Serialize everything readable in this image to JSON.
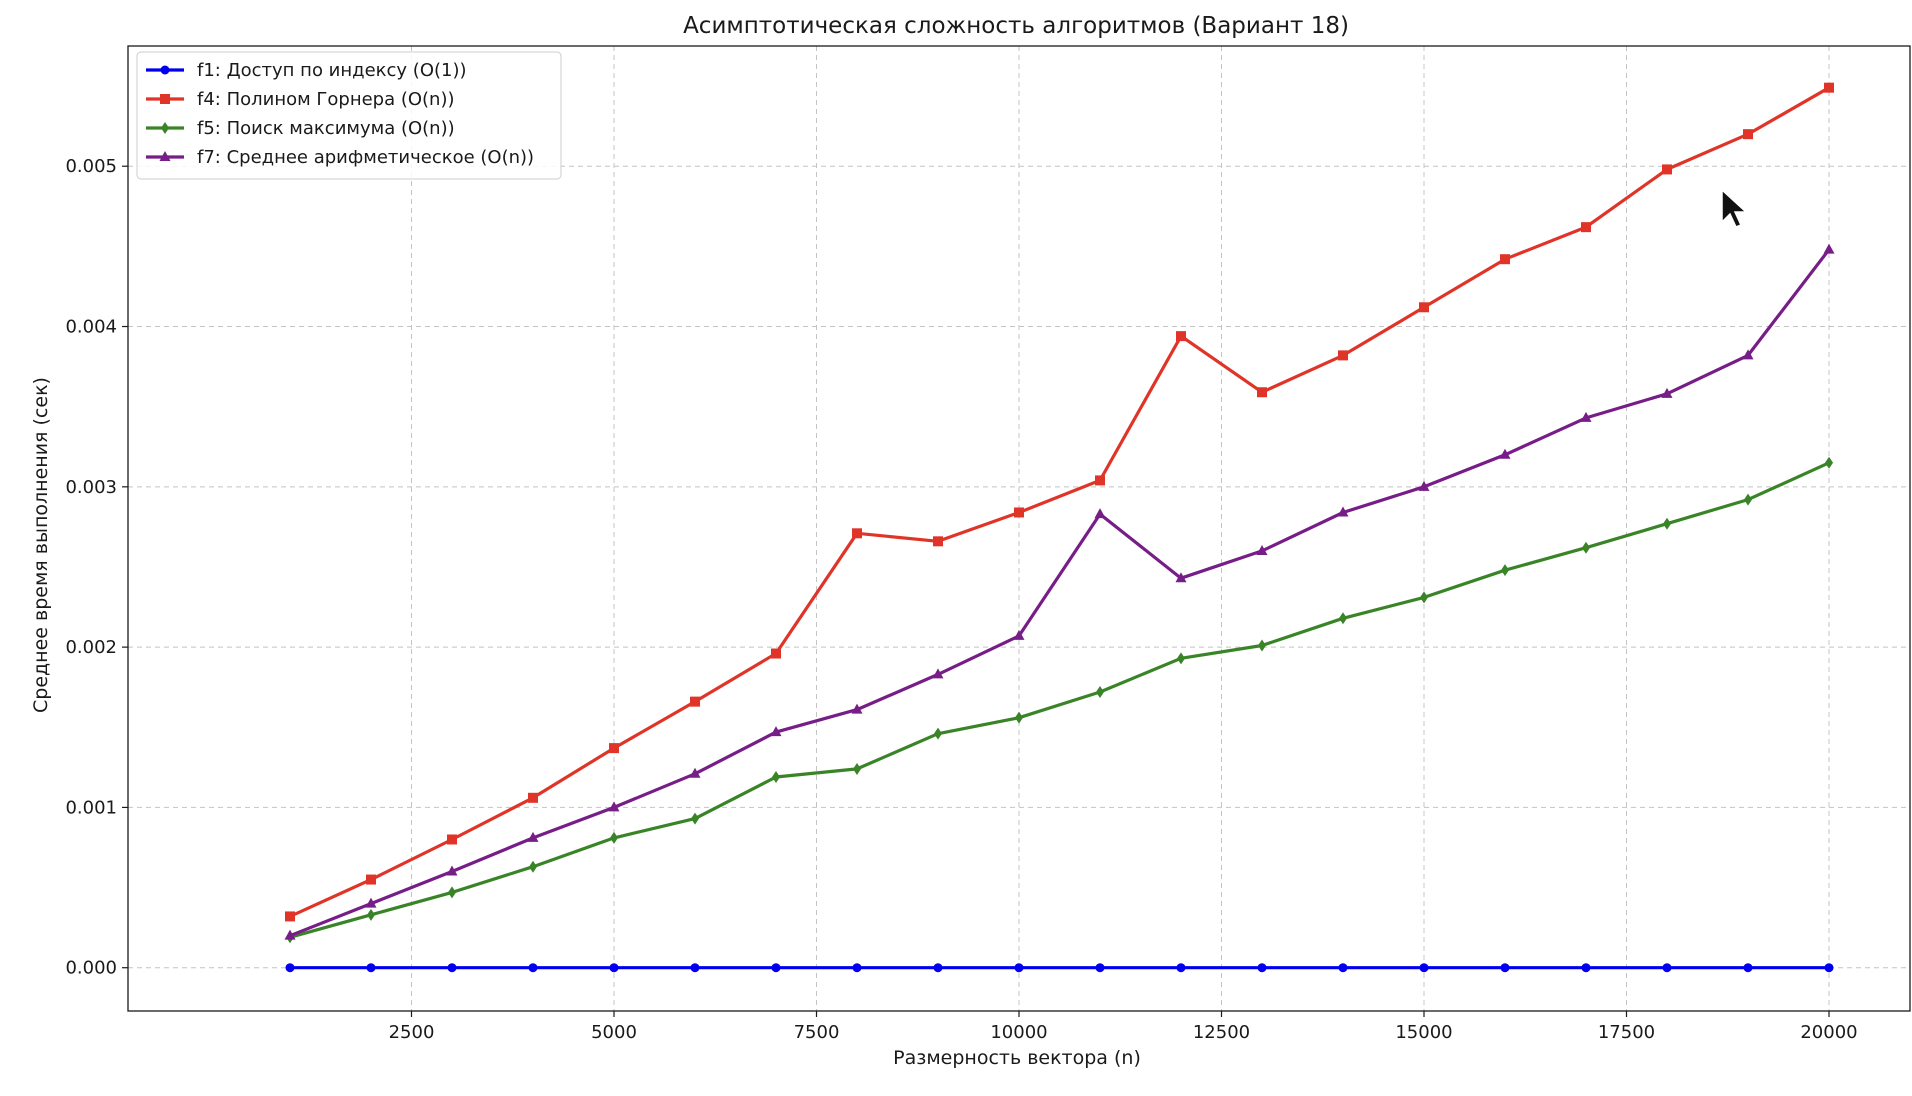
{
  "chart_data": {
    "type": "line",
    "title": "Асимптотическая сложность алгоритмов (Вариант 18)",
    "xlabel": "Размерность вектора (n)",
    "ylabel": "Среднее время выполнения (сек)",
    "xlim": [
      -1000,
      21000
    ],
    "ylim": [
      -0.00027,
      0.00575
    ],
    "x_ticks": [
      2500,
      5000,
      7500,
      10000,
      12500,
      15000,
      17500,
      20000
    ],
    "x_tick_labels": [
      "2500",
      "5000",
      "7500",
      "10000",
      "12500",
      "15000",
      "17500",
      "20000"
    ],
    "y_ticks": [
      0.0,
      0.001,
      0.002,
      0.003,
      0.004,
      0.005
    ],
    "y_tick_labels": [
      "0.000",
      "0.001",
      "0.002",
      "0.003",
      "0.004",
      "0.005"
    ],
    "grid": true,
    "legend_position": "top-left",
    "x": [
      1000,
      2000,
      3000,
      4000,
      5000,
      6000,
      7000,
      8000,
      9000,
      10000,
      11000,
      12000,
      13000,
      14000,
      15000,
      16000,
      17000,
      18000,
      19000,
      20000
    ],
    "series": [
      {
        "name": "f1: Доступ по индексу (O(1))",
        "color": "#0000ee",
        "marker": "circle",
        "values": [
          0,
          0,
          0,
          0,
          0,
          0,
          0,
          0,
          0,
          0,
          0,
          0,
          0,
          0,
          0,
          0,
          0,
          0,
          0,
          0
        ]
      },
      {
        "name": "f4: Полином Горнера (O(n))",
        "color": "#e03428",
        "marker": "square",
        "values": [
          0.00032,
          0.00055,
          0.0008,
          0.00106,
          0.00137,
          0.00166,
          0.00196,
          0.00271,
          0.00266,
          0.00284,
          0.00304,
          0.00394,
          0.00359,
          0.00382,
          0.00412,
          0.00442,
          0.00462,
          0.00498,
          0.0052,
          0.00549
        ]
      },
      {
        "name": "f5: Поиск максимума (O(n))",
        "color": "#3a8428",
        "marker": "diamond",
        "values": [
          0.00019,
          0.00033,
          0.00047,
          0.00063,
          0.00081,
          0.00093,
          0.00119,
          0.00124,
          0.00146,
          0.00156,
          0.00172,
          0.00193,
          0.00201,
          0.00218,
          0.00231,
          0.00248,
          0.00262,
          0.00277,
          0.00292,
          0.00315
        ]
      },
      {
        "name": "f7: Среднее арифметическое (O(n))",
        "color": "#771d88",
        "marker": "triangle",
        "values": [
          0.0002,
          0.0004,
          0.0006,
          0.00081,
          0.001,
          0.00121,
          0.00147,
          0.00161,
          0.00183,
          0.00207,
          0.00283,
          0.00243,
          0.0026,
          0.00284,
          0.003,
          0.0032,
          0.00343,
          0.00358,
          0.00382,
          0.00448
        ]
      }
    ]
  }
}
